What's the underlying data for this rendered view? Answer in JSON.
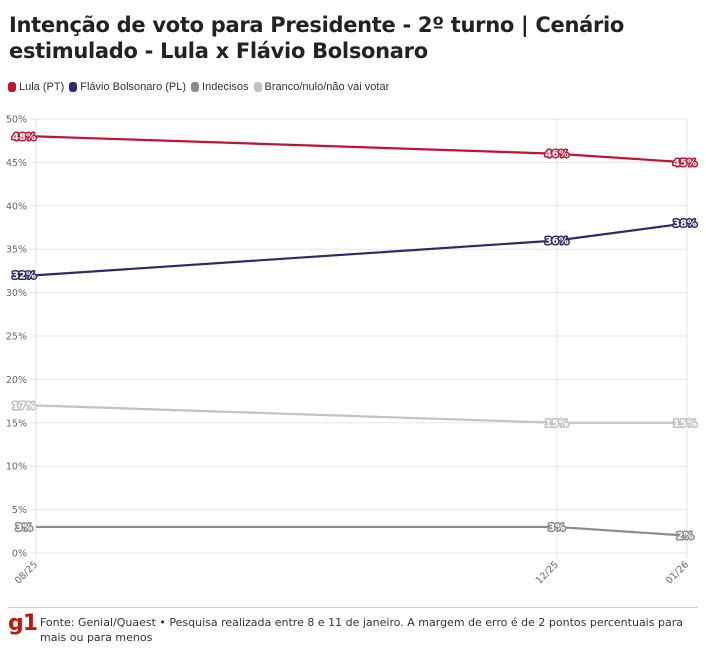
{
  "header": {
    "title": "Intenção de voto para Presidente - 2º turno | Cenário estimulado - Lula x Flávio Bolsonaro"
  },
  "legend": [
    {
      "label": "Lula (PT)",
      "color": "#c4122f"
    },
    {
      "label": "Flávio Bolsonaro (PL)",
      "color": "#2b2d6b"
    },
    {
      "label": "Indecisos",
      "color": "#8c8c8c"
    },
    {
      "label": "Branco/nulo/não vai votar",
      "color": "#c2c2c2"
    }
  ],
  "footer": {
    "logo": "g1",
    "source": "Fonte: Genial/Quaest • Pesquisa realizada entre 8 e 11 de janeiro. A margem de erro é de 2 pontos percentuais para mais ou para menos"
  },
  "chart_data": {
    "type": "line",
    "title": "Intenção de voto para Presidente - 2º turno | Cenário estimulado - Lula x Flávio Bolsonaro",
    "xlabel": "",
    "ylabel": "",
    "x": [
      "08/25",
      "12/25",
      "01/26"
    ],
    "x_time_months": [
      0,
      4,
      5
    ],
    "ylim": [
      0,
      50
    ],
    "yticks": [
      0,
      5,
      10,
      15,
      20,
      25,
      30,
      35,
      40,
      45,
      50
    ],
    "ytick_labels": [
      "0%",
      "5%",
      "10%",
      "15%",
      "20%",
      "25%",
      "30%",
      "35%",
      "40%",
      "45%",
      "50%"
    ],
    "grid": true,
    "legend_position": "top-left",
    "series": [
      {
        "name": "Lula (PT)",
        "color": "#c4122f",
        "values": [
          48,
          46,
          45
        ],
        "labels": [
          "48%",
          "46%",
          "45%"
        ]
      },
      {
        "name": "Flávio Bolsonaro (PL)",
        "color": "#2b2d6b",
        "values": [
          32,
          36,
          38
        ],
        "labels": [
          "32%",
          "36%",
          "38%"
        ]
      },
      {
        "name": "Indecisos",
        "color": "#8c8c8c",
        "values": [
          3,
          3,
          2
        ],
        "labels": [
          "3%",
          "3%",
          "2%"
        ]
      },
      {
        "name": "Branco/nulo/não vai votar",
        "color": "#c2c2c2",
        "values": [
          17,
          15,
          15
        ],
        "labels": [
          "17%",
          "15%",
          "15%"
        ]
      }
    ]
  }
}
